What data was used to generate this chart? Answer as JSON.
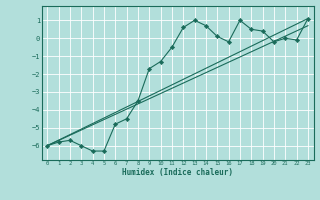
{
  "xlabel": "Humidex (Indice chaleur)",
  "bg_color": "#b2dfdb",
  "grid_color": "#ffffff",
  "line_color": "#1a6b5a",
  "marker": "D",
  "xlim": [
    -0.5,
    23.5
  ],
  "ylim": [
    -6.8,
    1.8
  ],
  "yticks": [
    1,
    0,
    -1,
    -2,
    -3,
    -4,
    -5,
    -6
  ],
  "xticks": [
    0,
    1,
    2,
    3,
    4,
    5,
    6,
    7,
    8,
    9,
    10,
    11,
    12,
    13,
    14,
    15,
    16,
    17,
    18,
    19,
    20,
    21,
    22,
    23
  ],
  "series1_x": [
    0,
    1,
    2,
    3,
    4,
    5,
    6,
    7,
    8,
    9,
    10,
    11,
    12,
    13,
    14,
    15,
    16,
    17,
    18,
    19,
    20,
    21,
    22,
    23
  ],
  "series1_y": [
    -6.0,
    -5.8,
    -5.7,
    -6.0,
    -6.3,
    -6.3,
    -4.8,
    -4.5,
    -3.5,
    -1.7,
    -1.3,
    -0.5,
    0.6,
    1.0,
    0.7,
    0.1,
    -0.2,
    1.0,
    0.5,
    0.4,
    -0.2,
    0.0,
    -0.1,
    1.1
  ],
  "series2_x": [
    0,
    23
  ],
  "series2_y": [
    -6.0,
    1.1
  ],
  "series3_x": [
    0,
    23
  ],
  "series3_y": [
    -6.0,
    0.7
  ]
}
